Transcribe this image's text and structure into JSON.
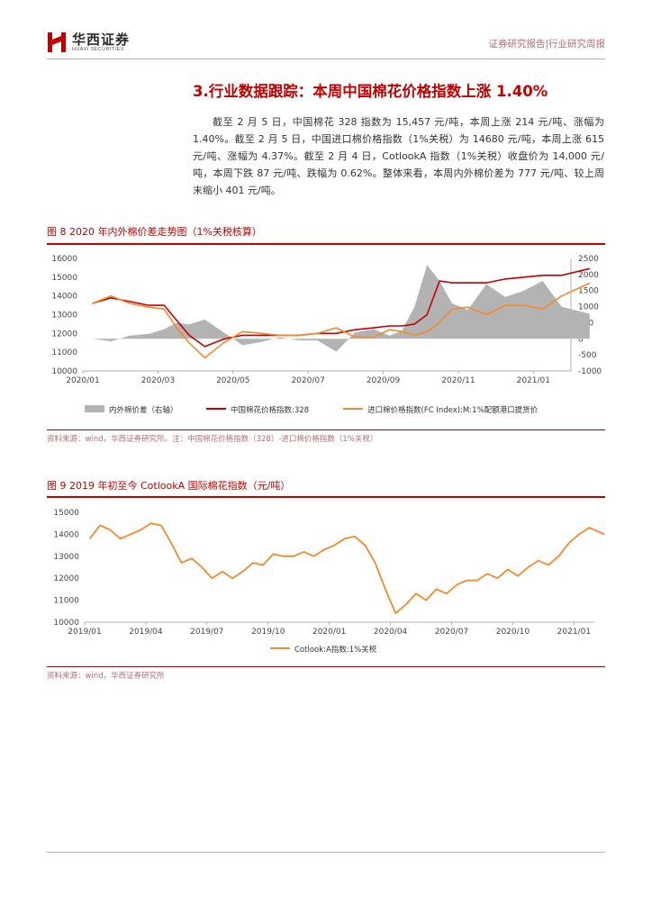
{
  "header": {
    "brand_cn": "华西证券",
    "brand_en": "HUAXI SECURITIES",
    "report_type": "证券研究报告|行业研究周报",
    "colors": {
      "accent": "#c00000",
      "rule": "#c9a7a7"
    }
  },
  "section": {
    "title": "3.行业数据跟踪：本周中国棉花价格指数上涨 1.40%",
    "paragraph": "截至 2 月 5 日，中国棉花 328 指数为 15,457 元/吨，本周上涨 214 元/吨、涨幅为 1.40%。截至 2 月 5 日，中国进口棉价格指数（1%关税）为 14680 元/吨，本周上涨 615 元/吨、涨幅为 4.37%。截至 2 月 4 日，CotlookA 指数（1%关税）收盘价为 14,000 元/吨，本周下跌 87 元/吨、跌幅为 0.62%。整体来看，本周内外棉价差为 777 元/吨、较上周末缩小 401 元/吨。"
  },
  "figure8": {
    "title": "图 8 2020 年内外棉价差走势图（1%关税核算）",
    "source": "资料来源：wind，华西证券研究所。注：中国棉花价格指数（328）-进口棉价格指数（1%关税）"
  },
  "figure9": {
    "title": "图 9 2019 年初至今 CotlookA 国际棉花指数（元/吨）",
    "source": "资料来源：wind，华西证券研究所"
  },
  "chart_data": [
    {
      "type": "line",
      "ylim": [
        10000,
        16000
      ],
      "y2lim": [
        -1000,
        2500
      ],
      "y_ticks": [
        "10000",
        "11000",
        "12000",
        "13000",
        "14000",
        "15000",
        "16000"
      ],
      "y2_ticks": [
        "-1000",
        "-500",
        "0",
        "500",
        "1000",
        "1500",
        "2000",
        "2500"
      ],
      "x_ticks": [
        "2020/01",
        "2020/03",
        "2020/05",
        "2020/07",
        "2020/09",
        "2020/11",
        "2021/01"
      ],
      "x_range": [
        "2020/01",
        "2021/02"
      ],
      "legend_position": "bottom",
      "series": [
        {
          "name": "内外棉价差（右轴）",
          "kind": "area",
          "axis": "right",
          "color": "#b3b3b3",
          "x": [
            "2020/01",
            "2020/01",
            "2020/02",
            "2020/02",
            "2020/03",
            "2020/03",
            "2020/03",
            "2020/04",
            "2020/04",
            "2020/05",
            "2020/05",
            "2020/06",
            "2020/06",
            "2020/07",
            "2020/07",
            "2020/08",
            "2020/08",
            "2020/09",
            "2020/09",
            "2020/09",
            "2020/10",
            "2020/10",
            "2020/10",
            "2020/11",
            "2020/11",
            "2020/12",
            "2020/12",
            "2021/01",
            "2021/01",
            "2021/02"
          ],
          "values": [
            0,
            -80,
            100,
            150,
            300,
            500,
            450,
            600,
            200,
            -200,
            -100,
            50,
            -50,
            -50,
            -400,
            200,
            300,
            100,
            250,
            1000,
            2300,
            1800,
            1100,
            900,
            1700,
            1300,
            1500,
            1800,
            1000,
            777
          ]
        },
        {
          "name": "中国棉花价格指数:328",
          "kind": "line",
          "axis": "left",
          "color": "#c00000",
          "x": [
            "2020/01",
            "2020/01",
            "2020/02",
            "2020/02",
            "2020/03",
            "2020/03",
            "2020/03",
            "2020/04",
            "2020/04",
            "2020/05",
            "2020/05",
            "2020/06",
            "2020/06",
            "2020/07",
            "2020/07",
            "2020/08",
            "2020/08",
            "2020/09",
            "2020/09",
            "2020/09",
            "2020/10",
            "2020/10",
            "2020/10",
            "2020/11",
            "2020/11",
            "2020/12",
            "2020/12",
            "2021/01",
            "2021/01",
            "2021/02"
          ],
          "values": [
            13600,
            13900,
            13700,
            13500,
            13500,
            12700,
            11900,
            11300,
            11700,
            11900,
            11900,
            11900,
            11900,
            12000,
            12000,
            12200,
            12300,
            12400,
            12400,
            12500,
            13000,
            14800,
            14700,
            14700,
            14700,
            14900,
            15000,
            15100,
            15100,
            15457
          ]
        },
        {
          "name": "进口棉价格指数(FC Index):M:1%配额港口提货价",
          "kind": "line",
          "axis": "left",
          "color": "#f28a2b",
          "x": [
            "2020/01",
            "2020/01",
            "2020/02",
            "2020/02",
            "2020/03",
            "2020/03",
            "2020/03",
            "2020/04",
            "2020/04",
            "2020/05",
            "2020/05",
            "2020/06",
            "2020/06",
            "2020/07",
            "2020/07",
            "2020/08",
            "2020/08",
            "2020/09",
            "2020/09",
            "2020/09",
            "2020/10",
            "2020/10",
            "2020/10",
            "2020/11",
            "2020/11",
            "2020/12",
            "2020/12",
            "2021/01",
            "2021/01",
            "2021/02"
          ],
          "values": [
            13600,
            14000,
            13600,
            13400,
            13300,
            12300,
            11500,
            10700,
            11500,
            12100,
            12000,
            11900,
            11900,
            12000,
            12300,
            11800,
            11800,
            12200,
            12100,
            11900,
            12100,
            12600,
            13300,
            13400,
            13000,
            13500,
            13500,
            13300,
            14000,
            14680
          ]
        }
      ]
    },
    {
      "type": "line",
      "ylim": [
        10000,
        15000
      ],
      "y_ticks": [
        "10000",
        "11000",
        "12000",
        "13000",
        "14000",
        "15000"
      ],
      "x_ticks": [
        "2019/01",
        "2019/04",
        "2019/07",
        "2019/10",
        "2020/01",
        "2020/04",
        "2020/07",
        "2020/10",
        "2021/01"
      ],
      "x_range": [
        "2019/01",
        "2021/02"
      ],
      "legend_position": "bottom",
      "series": [
        {
          "name": "Cotlook:A指数:1%关税",
          "color": "#f28a2b",
          "x": [
            "2019/01",
            "2019/01",
            "2019/02",
            "2019/02",
            "2019/03",
            "2019/03",
            "2019/04",
            "2019/04",
            "2019/05",
            "2019/05",
            "2019/06",
            "2019/06",
            "2019/07",
            "2019/07",
            "2019/08",
            "2019/08",
            "2019/09",
            "2019/09",
            "2019/10",
            "2019/10",
            "2019/11",
            "2019/11",
            "2019/12",
            "2019/12",
            "2020/01",
            "2020/01",
            "2020/02",
            "2020/02",
            "2020/03",
            "2020/03",
            "2020/04",
            "2020/04",
            "2020/05",
            "2020/05",
            "2020/06",
            "2020/06",
            "2020/07",
            "2020/07",
            "2020/08",
            "2020/08",
            "2020/09",
            "2020/09",
            "2020/10",
            "2020/10",
            "2020/11",
            "2020/11",
            "2020/12",
            "2020/12",
            "2021/01",
            "2021/01",
            "2021/02"
          ],
          "values": [
            13800,
            14400,
            14200,
            13800,
            14000,
            14200,
            14500,
            14400,
            13600,
            12700,
            12900,
            12500,
            12000,
            12300,
            12000,
            12300,
            12700,
            12600,
            13100,
            13000,
            13000,
            13200,
            13000,
            13300,
            13500,
            13800,
            13900,
            13500,
            12700,
            11500,
            10400,
            10800,
            11300,
            11000,
            11500,
            11300,
            11700,
            11900,
            11900,
            12200,
            12000,
            12400,
            12100,
            12500,
            12800,
            12600,
            13000,
            13600,
            14000,
            14300,
            14000
          ]
        }
      ]
    }
  ]
}
